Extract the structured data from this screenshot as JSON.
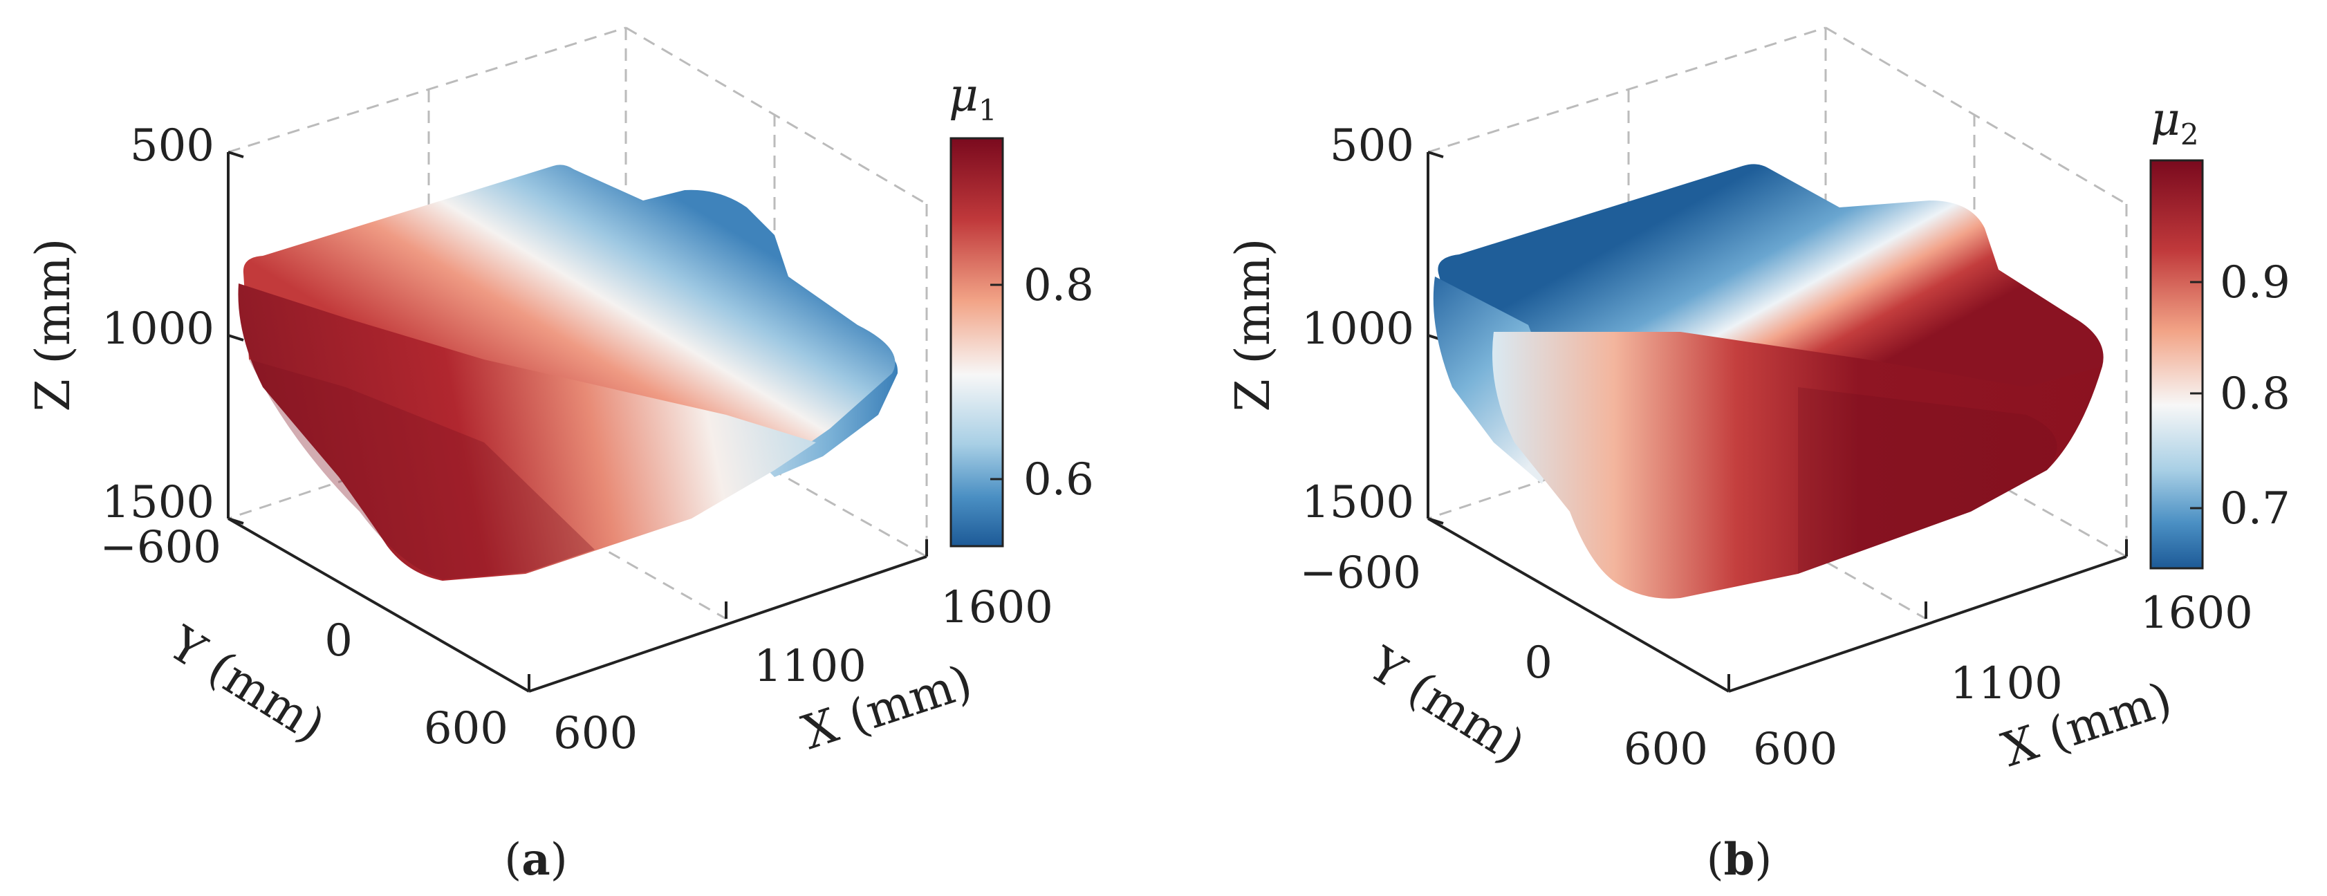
{
  "chart_data": [
    {
      "type": "scatter",
      "subtype": "3d-point-cloud",
      "panel_label": "a",
      "colorbar_label": "μ",
      "colorbar_subscript": "1",
      "xlabel": "X (mm)",
      "ylabel": "Y (mm)",
      "zlabel": "Z (mm)",
      "xticks": [
        "600",
        "1100",
        "1600"
      ],
      "yticks": [
        "−600",
        "0",
        "600"
      ],
      "zticks": [
        "500",
        "1000",
        "1500"
      ],
      "xlim": [
        600,
        1600
      ],
      "ylim": [
        -600,
        600
      ],
      "zlim": [
        500,
        1500
      ],
      "z_reversed": true,
      "color_range": [
        0.54,
        0.96
      ],
      "colorbar_ticks": [
        "0.6",
        "0.8"
      ],
      "colorbar_tick_values": [
        0.6,
        0.8
      ],
      "colormap": "red-white-blue (diverging)",
      "color_trend": "high values (dark red) near X ≈ 600 mm, decreasing through white to blue toward X ≈ 1600 mm"
    },
    {
      "type": "scatter",
      "subtype": "3d-point-cloud",
      "panel_label": "b",
      "colorbar_label": "μ",
      "colorbar_subscript": "2",
      "xlabel": "X (mm)",
      "ylabel": "Y (mm)",
      "zlabel": "Z (mm)",
      "xticks": [
        "600",
        "1100",
        "1600"
      ],
      "yticks": [
        "−600",
        "0",
        "600"
      ],
      "zticks": [
        "500",
        "1000",
        "1500"
      ],
      "xlim": [
        600,
        1600
      ],
      "ylim": [
        -600,
        600
      ],
      "zlim": [
        500,
        1500
      ],
      "z_reversed": true,
      "color_range": [
        0.65,
        0.99
      ],
      "colorbar_ticks": [
        "0.7",
        "0.8",
        "0.9"
      ],
      "colorbar_tick_values": [
        0.7,
        0.8,
        0.9
      ],
      "colormap": "red-white-blue (diverging)",
      "color_trend": "low values (blue) near Y ≈ −600 mm, rising through white to dark red toward Y ≈ 600 mm"
    }
  ],
  "colors": {
    "dark_red": "#7a0a1e",
    "red": "#c0393b",
    "salmon": "#f2a487",
    "white": "#f7f7f7",
    "light_blue": "#a8cfe5",
    "blue": "#4a8fc3",
    "dark_blue": "#1d5a97",
    "axis": "#222222",
    "grid": "#bbbbbb"
  }
}
